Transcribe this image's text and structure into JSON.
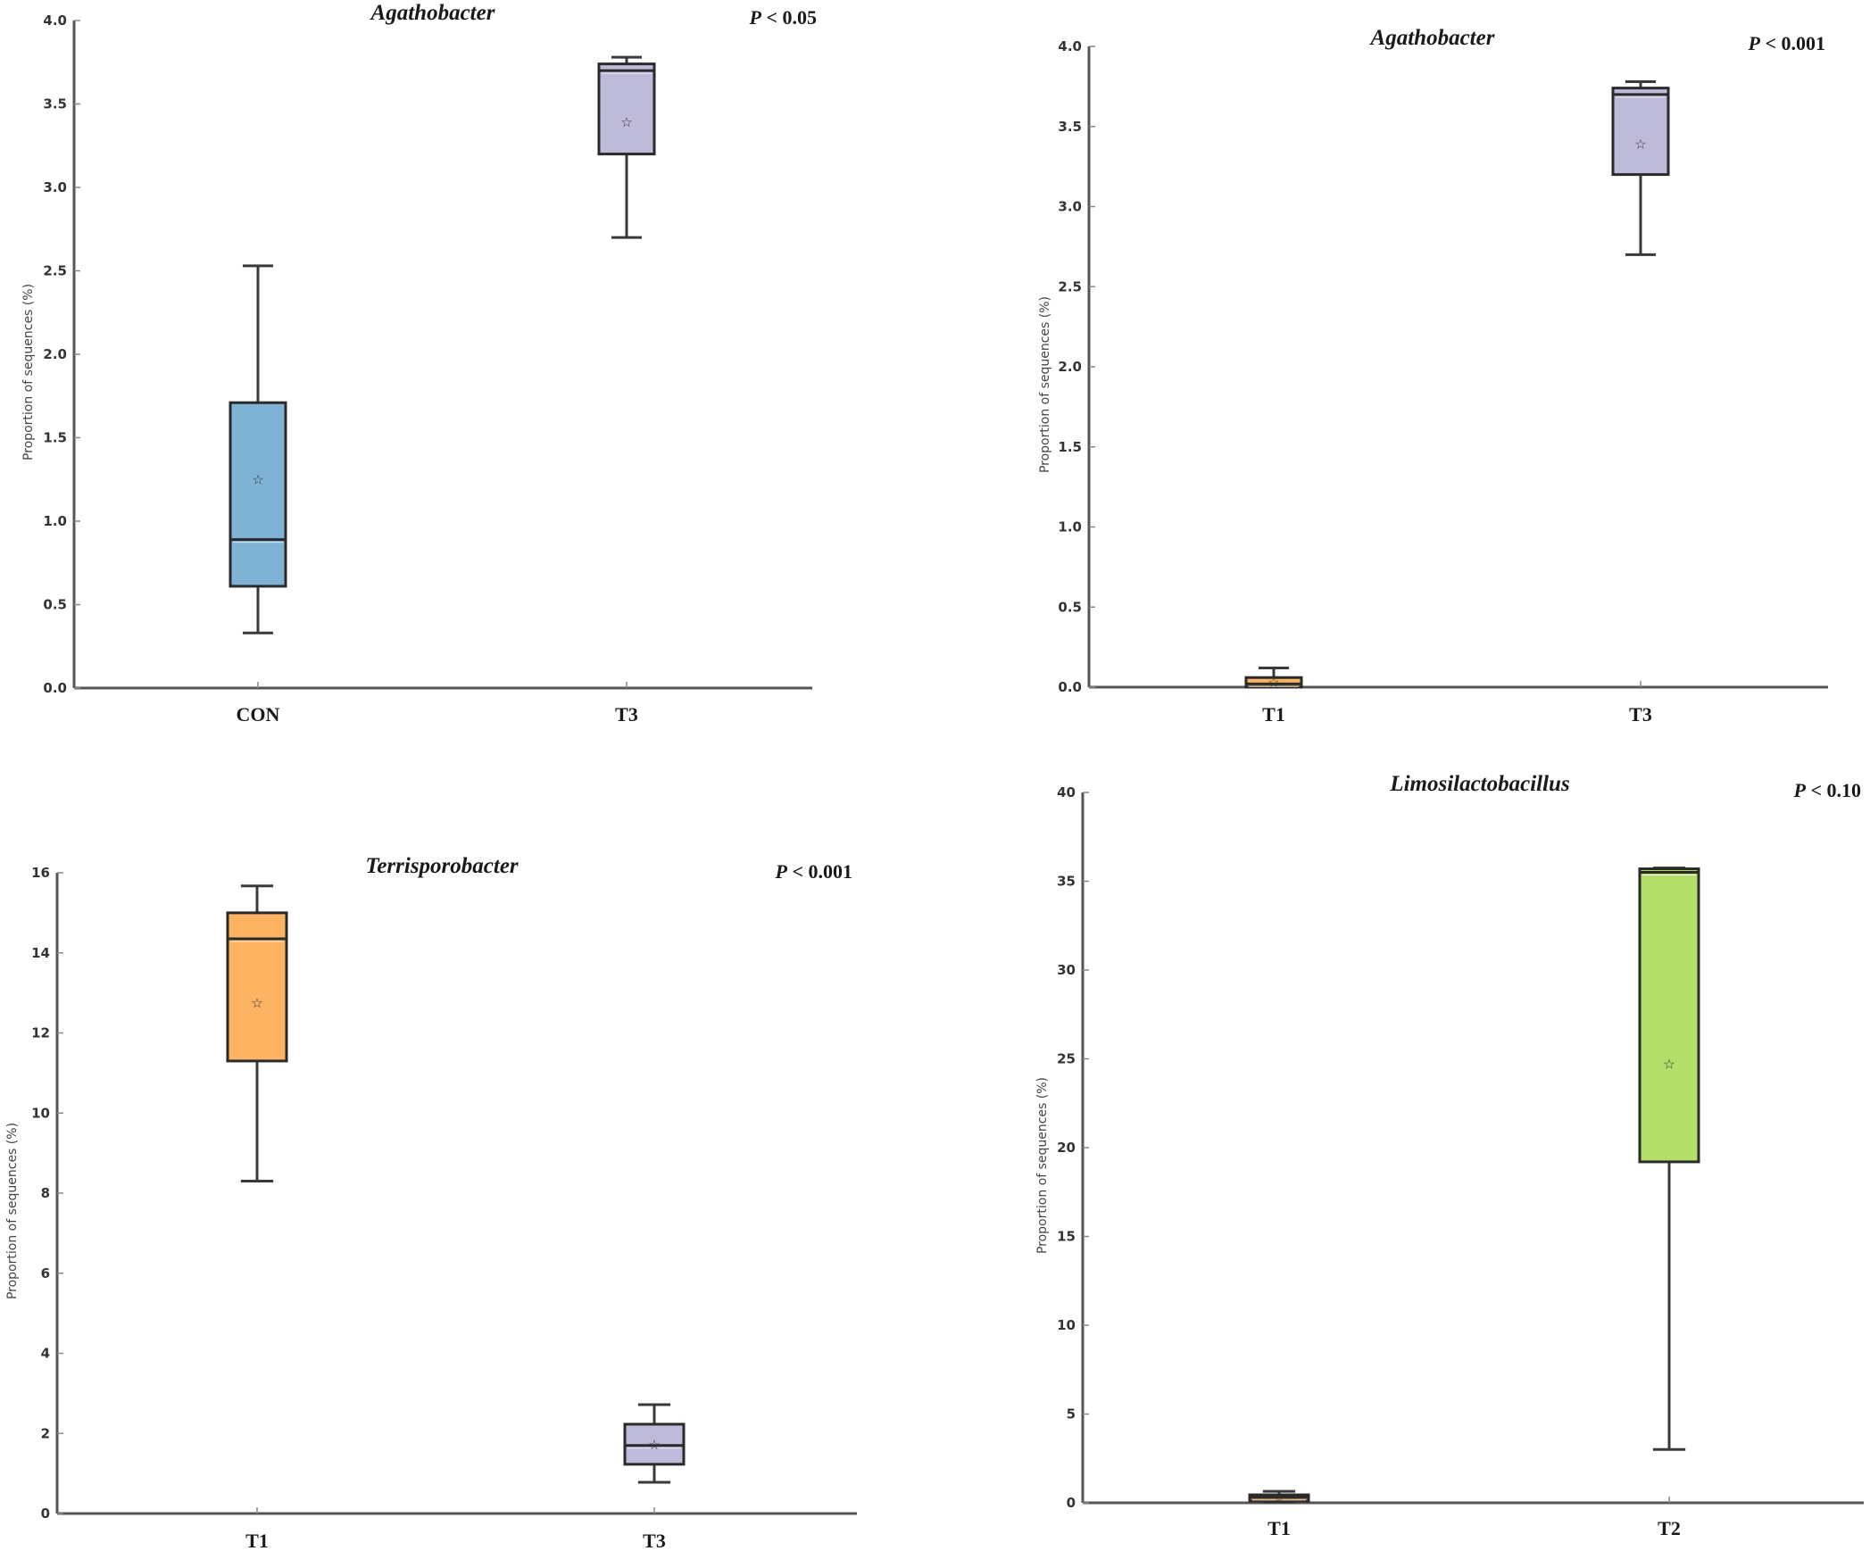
{
  "chart_data": [
    {
      "type": "box",
      "title": "Agathobacter",
      "pvalue": {
        "prefix": "P",
        "text": " < 0.05"
      },
      "ylabel": "Proportion of sequences (%)",
      "xlabel": "",
      "ylim": [
        0,
        4.0
      ],
      "yticks": [
        0.0,
        0.5,
        1.0,
        1.5,
        2.0,
        2.5,
        3.0,
        3.5,
        4.0
      ],
      "ytick_labels": [
        "0.0",
        "0.5",
        "1.0",
        "1.5",
        "2.0",
        "2.5",
        "3.0",
        "3.5",
        "4.0"
      ],
      "categories": [
        "CON",
        "T3"
      ],
      "series": [
        {
          "name": "CON",
          "color": "#7fb3d5",
          "whisker_low": 0.33,
          "q1": 0.61,
          "median": 0.89,
          "q3": 1.71,
          "whisker_high": 2.53,
          "mean": 1.25
        },
        {
          "name": "T3",
          "color": "#bebada",
          "whisker_low": 2.7,
          "q1": 3.2,
          "median": 3.7,
          "q3": 3.74,
          "whisker_high": 3.78,
          "mean": 3.39
        }
      ]
    },
    {
      "type": "box",
      "title": "Agathobacter",
      "pvalue": {
        "prefix": "P",
        "text": " < 0.001"
      },
      "ylabel": "Proportion of sequences (%)",
      "xlabel": "",
      "ylim": [
        0,
        4.0
      ],
      "yticks": [
        0.0,
        0.5,
        1.0,
        1.5,
        2.0,
        2.5,
        3.0,
        3.5,
        4.0
      ],
      "ytick_labels": [
        "0.0",
        "0.5",
        "1.0",
        "1.5",
        "2.0",
        "2.5",
        "3.0",
        "3.5",
        "4.0"
      ],
      "categories": [
        "T1",
        "T3"
      ],
      "series": [
        {
          "name": "T1",
          "color": "#fdb462",
          "whisker_low": 0.0,
          "q1": 0.0,
          "median": 0.02,
          "q3": 0.06,
          "whisker_high": 0.12,
          "mean": 0.03
        },
        {
          "name": "T3",
          "color": "#bebada",
          "whisker_low": 2.7,
          "q1": 3.2,
          "median": 3.7,
          "q3": 3.74,
          "whisker_high": 3.78,
          "mean": 3.39
        }
      ]
    },
    {
      "type": "box",
      "title": "Terrisporobacter",
      "pvalue": {
        "prefix": "P",
        "text": " < 0.001"
      },
      "ylabel": "Proportion of sequences (%)",
      "xlabel": "",
      "ylim": [
        0,
        16
      ],
      "yticks": [
        0,
        2,
        4,
        6,
        8,
        10,
        12,
        14,
        16
      ],
      "ytick_labels": [
        "0",
        "2",
        "4",
        "6",
        "8",
        "10",
        "12",
        "14",
        "16"
      ],
      "categories": [
        "T1",
        "T3"
      ],
      "series": [
        {
          "name": "T1",
          "color": "#fdb462",
          "whisker_low": 8.3,
          "q1": 11.3,
          "median": 14.35,
          "q3": 15.0,
          "whisker_high": 15.67,
          "mean": 12.75
        },
        {
          "name": "T3",
          "color": "#bebada",
          "whisker_low": 0.78,
          "q1": 1.23,
          "median": 1.7,
          "q3": 2.23,
          "whisker_high": 2.72,
          "mean": 1.72
        }
      ]
    },
    {
      "type": "box",
      "title": "Limosilactobacillus",
      "pvalue": {
        "prefix": "P",
        "text": " < 0.10"
      },
      "ylabel": "Proportion of sequences (%)",
      "xlabel": "",
      "ylim": [
        0,
        40
      ],
      "yticks": [
        0,
        5,
        10,
        15,
        20,
        25,
        30,
        35,
        40
      ],
      "ytick_labels": [
        "0",
        "5",
        "10",
        "15",
        "20",
        "25",
        "30",
        "35",
        "40"
      ],
      "categories": [
        "T1",
        "T2"
      ],
      "series": [
        {
          "name": "T1",
          "color": "#fdb462",
          "whisker_low": 0.05,
          "q1": 0.1,
          "median": 0.3,
          "q3": 0.45,
          "whisker_high": 0.65,
          "mean": 0.3
        },
        {
          "name": "T2",
          "color": "#b3de69",
          "whisker_low": 3.0,
          "q1": 19.2,
          "median": 35.5,
          "q3": 35.7,
          "whisker_high": 35.75,
          "mean": 24.7
        }
      ]
    }
  ]
}
